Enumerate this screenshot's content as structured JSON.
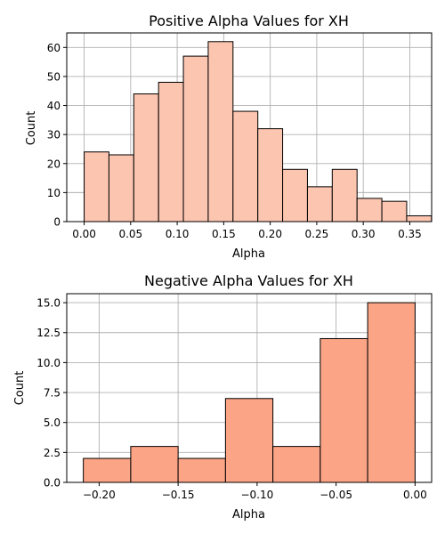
{
  "chart_data": [
    {
      "type": "bar",
      "title": "Positive Alpha Values for XH",
      "xlabel": "Alpha",
      "ylabel": "Count",
      "xlim": [
        -0.0187,
        0.3735
      ],
      "ylim": [
        0,
        65
      ],
      "grid": true,
      "bar_color": "#fcc5b0",
      "edge_color": "#000000",
      "xticks": [
        0.0,
        0.05,
        0.1,
        0.15,
        0.2,
        0.25,
        0.3,
        0.35
      ],
      "xtick_labels": [
        "0.00",
        "0.05",
        "0.10",
        "0.15",
        "0.20",
        "0.25",
        "0.30",
        "0.35"
      ],
      "yticks": [
        0,
        10,
        20,
        30,
        40,
        50,
        60
      ],
      "ytick_labels": [
        "0",
        "10",
        "20",
        "30",
        "40",
        "50",
        "60"
      ],
      "bins": [
        {
          "x0": 0.0,
          "x1": 0.026667,
          "count": 24
        },
        {
          "x0": 0.026667,
          "x1": 0.053333,
          "count": 23
        },
        {
          "x0": 0.053333,
          "x1": 0.08,
          "count": 44
        },
        {
          "x0": 0.08,
          "x1": 0.106667,
          "count": 48
        },
        {
          "x0": 0.106667,
          "x1": 0.133333,
          "count": 57
        },
        {
          "x0": 0.133333,
          "x1": 0.16,
          "count": 62
        },
        {
          "x0": 0.16,
          "x1": 0.186667,
          "count": 38
        },
        {
          "x0": 0.186667,
          "x1": 0.213333,
          "count": 32
        },
        {
          "x0": 0.213333,
          "x1": 0.24,
          "count": 18
        },
        {
          "x0": 0.24,
          "x1": 0.266667,
          "count": 12
        },
        {
          "x0": 0.266667,
          "x1": 0.293333,
          "count": 18
        },
        {
          "x0": 0.293333,
          "x1": 0.32,
          "count": 8
        },
        {
          "x0": 0.32,
          "x1": 0.346667,
          "count": 7
        },
        {
          "x0": 0.346667,
          "x1": 0.373333,
          "count": 2
        }
      ]
    },
    {
      "type": "bar",
      "title": "Negative Alpha Values for XH",
      "xlabel": "Alpha",
      "ylabel": "Count",
      "xlim": [
        -0.2205,
        0.0105
      ],
      "ylim": [
        0,
        15.75
      ],
      "grid": true,
      "bar_color": "#fca486",
      "edge_color": "#000000",
      "xticks": [
        -0.2,
        -0.15,
        -0.1,
        -0.05,
        0.0
      ],
      "xtick_labels": [
        "−0.20",
        "−0.15",
        "−0.10",
        "−0.05",
        "0.00"
      ],
      "yticks": [
        0,
        2.5,
        5,
        7.5,
        10,
        12.5,
        15
      ],
      "ytick_labels": [
        "0.0",
        "2.5",
        "5.0",
        "7.5",
        "10.0",
        "12.5",
        "15.0"
      ],
      "bins": [
        {
          "x0": -0.21,
          "x1": -0.18,
          "count": 2
        },
        {
          "x0": -0.18,
          "x1": -0.15,
          "count": 3
        },
        {
          "x0": -0.15,
          "x1": -0.12,
          "count": 2
        },
        {
          "x0": -0.12,
          "x1": -0.09,
          "count": 7
        },
        {
          "x0": -0.09,
          "x1": -0.06,
          "count": 3
        },
        {
          "x0": -0.06,
          "x1": -0.03,
          "count": 12
        },
        {
          "x0": -0.03,
          "x1": 0.0,
          "count": 15
        }
      ]
    }
  ]
}
